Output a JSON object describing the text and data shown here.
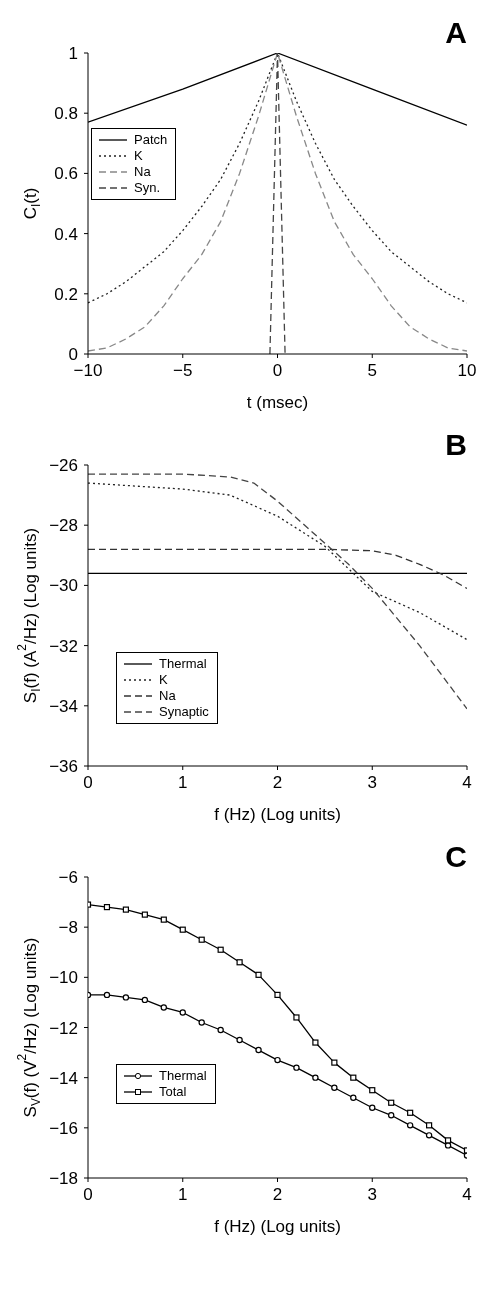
{
  "chart_data": [
    {
      "type": "line",
      "title": "A",
      "xlabel": "t (msec)",
      "ylabel": "C$_{I}$(t)",
      "xlim": [
        -10,
        10
      ],
      "xticks": [
        -10,
        -5,
        0,
        5,
        10
      ],
      "ylim": [
        0,
        1
      ],
      "yticks": [
        0,
        0.2,
        0.4,
        0.6,
        0.8,
        1
      ],
      "legend": "left",
      "marker": "none",
      "series": [
        {
          "name": "Patch",
          "color": "#000000",
          "line_style": "solid",
          "x": [
            -10,
            -5,
            0,
            5,
            10
          ],
          "values": [
            0.77,
            0.88,
            1,
            0.88,
            0.76
          ]
        },
        {
          "name": "K",
          "color": "#222222",
          "line_style": "dotted",
          "x": [
            -10,
            -9,
            -8,
            -7,
            -6,
            -5,
            -4,
            -3,
            -2,
            -1,
            0,
            1,
            2,
            3,
            4,
            5,
            6,
            7,
            8,
            9,
            10
          ],
          "values": [
            0.17,
            0.2,
            0.24,
            0.29,
            0.34,
            0.41,
            0.49,
            0.58,
            0.7,
            0.84,
            1,
            0.84,
            0.7,
            0.58,
            0.49,
            0.41,
            0.34,
            0.29,
            0.24,
            0.2,
            0.17
          ]
        },
        {
          "name": "Na",
          "color": "#888888",
          "line_style": "dashed",
          "x": [
            -10,
            -9,
            -8,
            -7,
            -6,
            -5,
            -4,
            -3,
            -2,
            -1,
            0,
            1,
            2,
            3,
            4,
            5,
            6,
            7,
            8,
            9,
            10
          ],
          "values": [
            0.01,
            0.02,
            0.05,
            0.09,
            0.16,
            0.25,
            0.33,
            0.44,
            0.6,
            0.79,
            1,
            0.79,
            0.6,
            0.44,
            0.33,
            0.25,
            0.16,
            0.09,
            0.05,
            0.02,
            0.01
          ]
        },
        {
          "name": "Syn.",
          "color": "#444444",
          "line_style": "dashed",
          "x": [
            -0.4,
            -0.2,
            0,
            0.2,
            0.4
          ],
          "values": [
            0,
            0.5,
            1,
            0.5,
            0
          ]
        }
      ]
    },
    {
      "type": "line",
      "title": "B",
      "xlabel": "f (Hz) (Log units)",
      "ylabel": "S$_{I}$(f) (A$^{2}$/Hz) (Log units)",
      "xlim": [
        0,
        4
      ],
      "xticks": [
        0,
        1,
        2,
        3,
        4
      ],
      "ylim": [
        -36,
        -26
      ],
      "yticks": [
        -36,
        -34,
        -32,
        -30,
        -28,
        -26
      ],
      "legend": "bottom left",
      "marker": "none",
      "series": [
        {
          "name": "Thermal",
          "color": "#000000",
          "line_style": "solid",
          "x": [
            0,
            4
          ],
          "values": [
            -29.6,
            -29.6
          ]
        },
        {
          "name": "K",
          "color": "#222222",
          "line_style": "dotted",
          "x": [
            0,
            1,
            1.5,
            2,
            2.5,
            3,
            3.5,
            4
          ],
          "values": [
            -26.6,
            -26.8,
            -27.0,
            -27.7,
            -28.7,
            -30.2,
            -30.9,
            -31.8
          ]
        },
        {
          "name": "Na",
          "color": "#333333",
          "line_style": "dashed",
          "x": [
            0,
            1,
            2,
            2.5,
            3,
            3.25,
            3.5,
            3.75,
            4
          ],
          "values": [
            -28.8,
            -28.8,
            -28.8,
            -28.8,
            -28.85,
            -29.0,
            -29.3,
            -29.65,
            -30.1
          ]
        },
        {
          "name": "Synaptic",
          "color": "#444444",
          "line_style": "dashed",
          "x": [
            0,
            1,
            1.5,
            1.75,
            2,
            2.25,
            2.5,
            2.75,
            3,
            3.5,
            4
          ],
          "values": [
            -26.3,
            -26.3,
            -26.4,
            -26.6,
            -27.2,
            -27.9,
            -28.6,
            -29.3,
            -30.1,
            -32.0,
            -34.1
          ]
        }
      ]
    },
    {
      "type": "line",
      "title": "C",
      "xlabel": "f (Hz) (Log units)",
      "ylabel": "S$_{V}$(f) (V$^{2}$/Hz) (Log units)",
      "xlim": [
        0,
        4
      ],
      "xticks": [
        0,
        1,
        2,
        3,
        4
      ],
      "ylim": [
        -18,
        -6
      ],
      "yticks": [
        -18,
        -16,
        -14,
        -12,
        -10,
        -8,
        -6
      ],
      "legend": "bottom left",
      "series": [
        {
          "name": "Thermal",
          "color": "#000000",
          "marker": "circle",
          "x": [
            0,
            0.2,
            0.4,
            0.6,
            0.8,
            1,
            1.2,
            1.4,
            1.6,
            1.8,
            2,
            2.2,
            2.4,
            2.6,
            2.8,
            3,
            3.2,
            3.4,
            3.6,
            3.8,
            4
          ],
          "values": [
            -10.7,
            -10.7,
            -10.8,
            -10.9,
            -11.2,
            -11.4,
            -11.8,
            -12.1,
            -12.5,
            -12.9,
            -13.3,
            -13.6,
            -14.0,
            -14.4,
            -14.8,
            -15.2,
            -15.5,
            -15.9,
            -16.3,
            -16.7,
            -17.1
          ]
        },
        {
          "name": "Total",
          "color": "#000000",
          "marker": "square",
          "x": [
            0,
            0.2,
            0.4,
            0.6,
            0.8,
            1,
            1.2,
            1.4,
            1.6,
            1.8,
            2,
            2.2,
            2.4,
            2.6,
            2.8,
            3,
            3.2,
            3.4,
            3.6,
            3.8,
            4
          ],
          "values": [
            -7.1,
            -7.2,
            -7.3,
            -7.5,
            -7.7,
            -8.1,
            -8.5,
            -8.9,
            -9.4,
            -9.9,
            -10.7,
            -11.6,
            -12.6,
            -13.4,
            -14.0,
            -14.5,
            -15.0,
            -15.4,
            -15.9,
            -16.5,
            -16.9
          ]
        }
      ]
    }
  ]
}
